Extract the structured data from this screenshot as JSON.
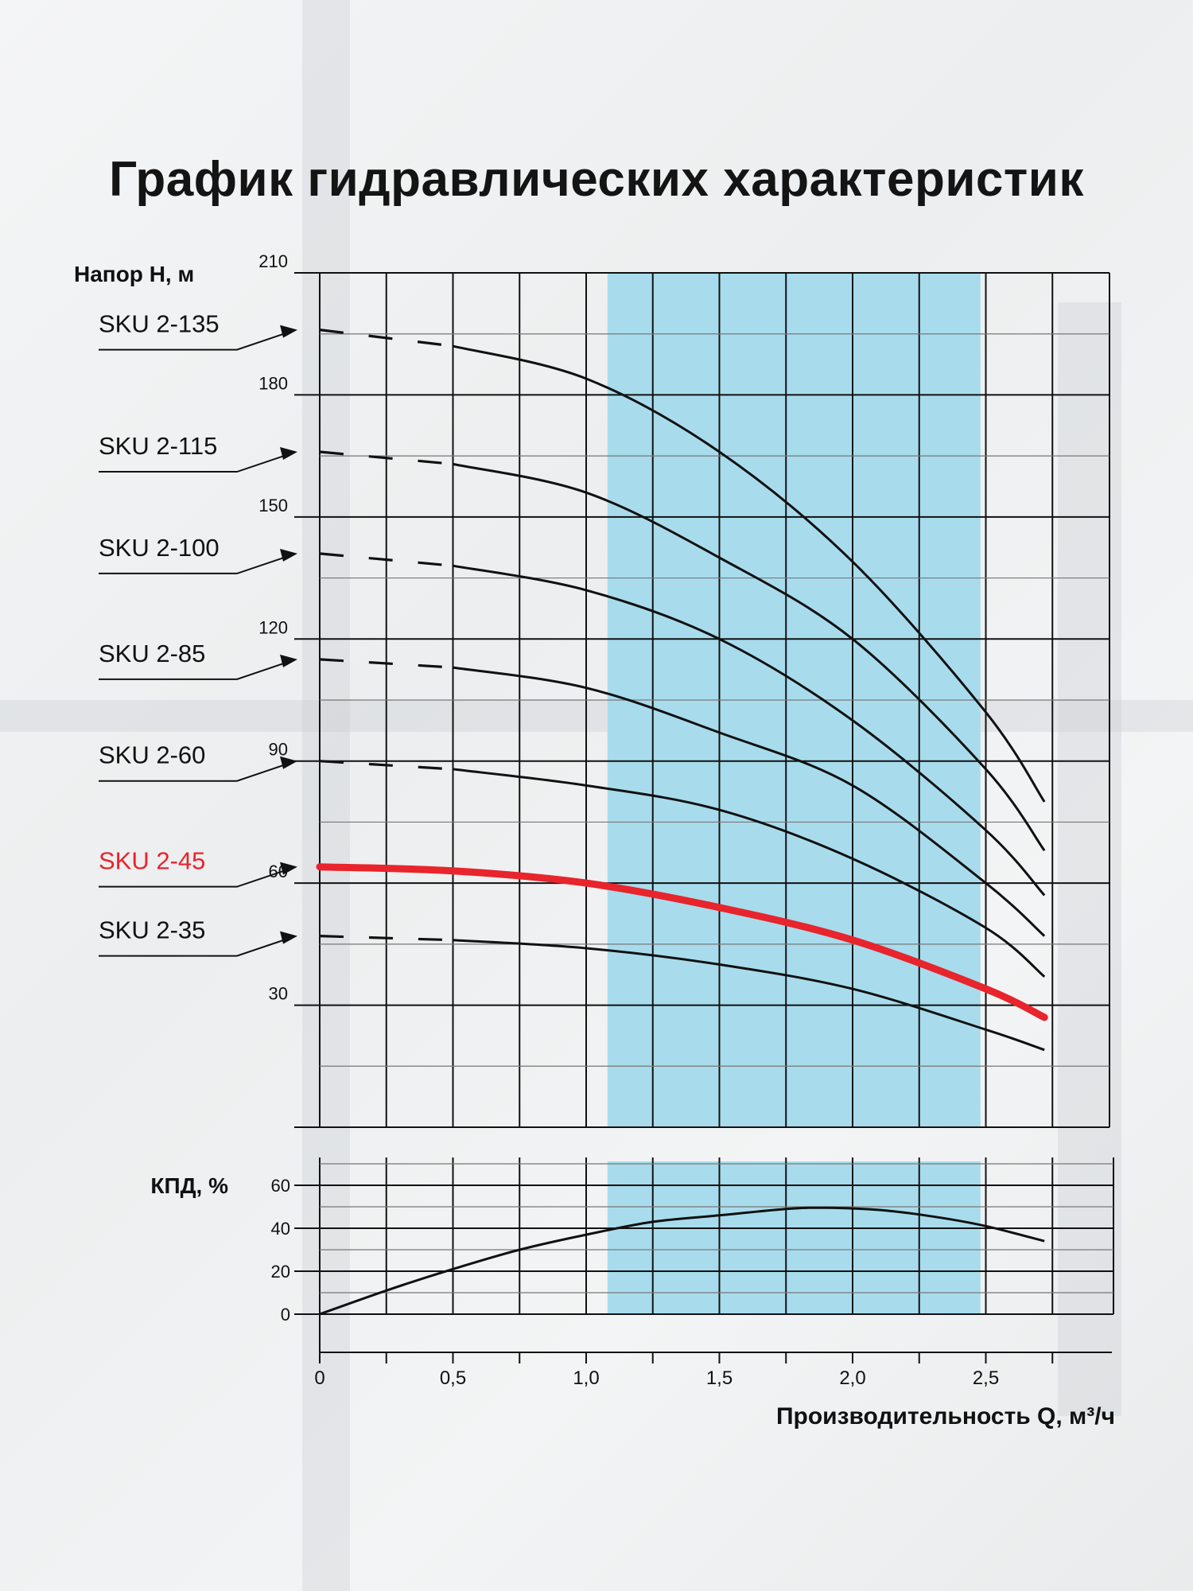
{
  "title": "График гидравлических характеристик",
  "colors": {
    "band": "#a8dcec",
    "highlight": "#e8242c",
    "line": "#111111"
  },
  "chart_data": [
    {
      "type": "line",
      "name": "head",
      "ylabel": "Напор H, м",
      "xlim": [
        0,
        2.95
      ],
      "ylim": [
        0,
        210
      ],
      "yticks": [
        30,
        60,
        90,
        120,
        150,
        180,
        210
      ],
      "recommended_range": [
        1.08,
        2.48
      ],
      "dashed_until": 0.5,
      "highlight_series": "SKU 2-45",
      "series": [
        {
          "name": "SKU 2-135",
          "x": [
            0,
            0.5,
            1.0,
            1.5,
            2.0,
            2.5,
            2.72
          ],
          "y": [
            196,
            192,
            184,
            166,
            139,
            102,
            80
          ]
        },
        {
          "name": "SKU 2-115",
          "x": [
            0,
            0.5,
            1.0,
            1.5,
            2.0,
            2.5,
            2.72
          ],
          "y": [
            166,
            163,
            156,
            140,
            120,
            88,
            68
          ]
        },
        {
          "name": "SKU 2-100",
          "x": [
            0,
            0.5,
            1.0,
            1.5,
            2.0,
            2.5,
            2.72
          ],
          "y": [
            141,
            138,
            132,
            120,
            100,
            73,
            57
          ]
        },
        {
          "name": "SKU 2-85",
          "x": [
            0,
            0.5,
            1.0,
            1.5,
            2.0,
            2.5,
            2.72
          ],
          "y": [
            115,
            113,
            108,
            97,
            84,
            60,
            47
          ]
        },
        {
          "name": "SKU 2-60",
          "x": [
            0,
            0.5,
            1.0,
            1.5,
            2.0,
            2.5,
            2.72
          ],
          "y": [
            90,
            88,
            84,
            78,
            66,
            49,
            37
          ]
        },
        {
          "name": "SKU 2-45",
          "x": [
            0,
            0.5,
            1.0,
            1.5,
            2.0,
            2.5,
            2.72
          ],
          "y": [
            64,
            63,
            60,
            54,
            46,
            34,
            27
          ]
        },
        {
          "name": "SKU 2-35",
          "x": [
            0,
            0.5,
            1.0,
            1.5,
            2.0,
            2.5,
            2.72
          ],
          "y": [
            47,
            46,
            44,
            40,
            34,
            24,
            19
          ]
        }
      ]
    },
    {
      "type": "line",
      "name": "efficiency",
      "ylabel": "КПД, %",
      "xlabel": "Производительность Q, м³/ч",
      "xlim": [
        0,
        2.95
      ],
      "ylim": [
        0,
        70
      ],
      "yticks": [
        0,
        20,
        40,
        60
      ],
      "xticks": [
        0,
        0.5,
        1.0,
        1.5,
        2.0,
        2.5
      ],
      "xtick_labels": [
        "0",
        "0,5",
        "1,0",
        "1,5",
        "2,0",
        "2,5"
      ],
      "series": [
        {
          "name": "КПД",
          "x": [
            0,
            0.25,
            0.5,
            0.75,
            1.0,
            1.25,
            1.5,
            1.75,
            1.9,
            2.1,
            2.3,
            2.5,
            2.72
          ],
          "y": [
            0,
            11,
            21,
            30,
            37,
            43,
            46,
            49,
            49.5,
            48.5,
            45.5,
            41,
            34
          ]
        }
      ]
    }
  ]
}
